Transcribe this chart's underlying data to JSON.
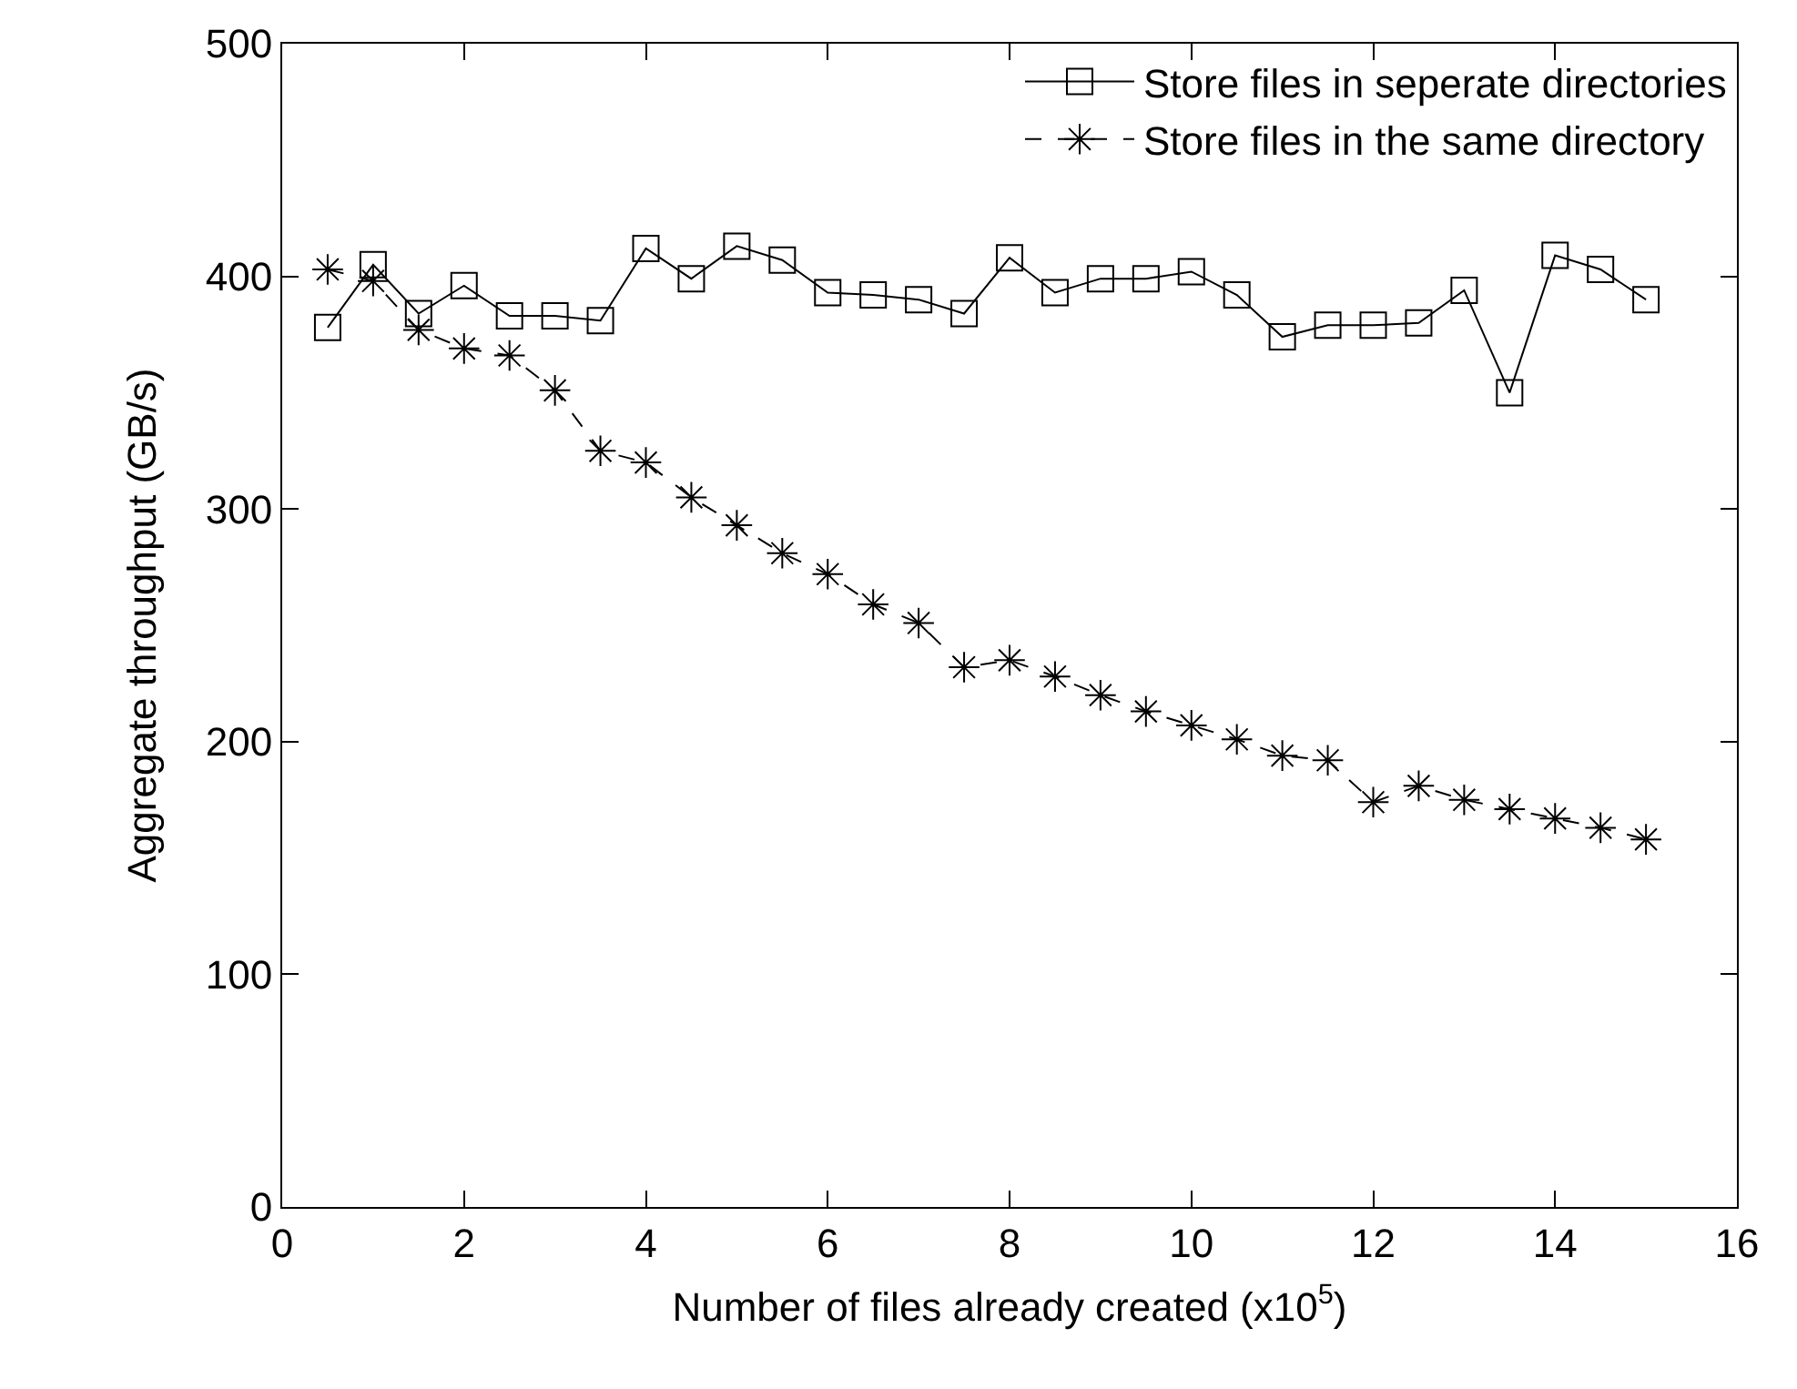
{
  "chart_data": {
    "type": "line",
    "xlabel": "Number of files already created (x10$^{5}$)",
    "ylabel": "Aggregate throughput (GB/s)",
    "x": [
      0.5,
      1,
      1.5,
      2,
      2.5,
      3,
      3.5,
      4,
      4.5,
      5,
      5.5,
      6,
      6.5,
      7,
      7.5,
      8,
      8.5,
      9,
      9.5,
      10,
      10.5,
      11,
      11.5,
      12,
      12.5,
      13,
      13.5,
      14,
      14.5,
      15
    ],
    "series": [
      {
        "name": "Store files in seperate directories",
        "color": "#000000",
        "marker": "square",
        "line_style": "solid",
        "values": [
          378,
          405,
          384,
          396,
          383,
          383,
          381,
          412,
          399,
          413,
          407,
          393,
          392,
          390,
          384,
          408,
          393,
          399,
          399,
          402,
          392,
          374,
          379,
          379,
          380,
          394,
          350,
          409,
          403,
          390
        ]
      },
      {
        "name": "Store files in the same directory",
        "color": "#000000",
        "marker": "cross",
        "line_style": "dashed",
        "values": [
          403,
          398,
          377,
          369,
          366,
          351,
          325,
          320,
          305,
          293,
          281,
          272,
          259,
          251,
          232,
          235,
          228,
          220,
          213,
          207,
          201,
          194,
          192,
          174,
          181,
          175,
          171,
          167,
          163,
          158
        ]
      }
    ],
    "xlim": [
      0,
      16
    ],
    "xticks": [
      0,
      2,
      4,
      6,
      8,
      10,
      12,
      14,
      16
    ],
    "ylim": [
      0,
      500
    ],
    "yticks": [
      0,
      100,
      200,
      300,
      400,
      500
    ],
    "grid": false,
    "legend": "top right"
  }
}
